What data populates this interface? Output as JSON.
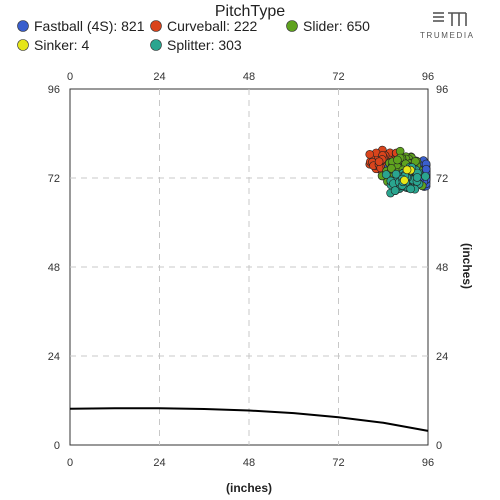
{
  "chart_data": {
    "type": "scatter",
    "title": "",
    "legend_title": "PitchType",
    "legend_placement": "top",
    "xlabel": "(inches)",
    "ylabel": "(inches)",
    "xlim": [
      0,
      96
    ],
    "ylim": [
      0,
      96
    ],
    "x_ticks": [
      "0",
      "24",
      "48",
      "72",
      "96"
    ],
    "y_ticks": [
      "0",
      "24",
      "48",
      "72",
      "96"
    ],
    "grid": true,
    "series": [
      {
        "name": "Fastball (4S)",
        "count": "821",
        "color": "#3a5fcd",
        "center": [
          93,
          73
        ],
        "spread": [
          2.2,
          1.6
        ]
      },
      {
        "name": "Curveball",
        "count": "222",
        "color": "#d9441c",
        "center": [
          84.5,
          76.5
        ],
        "spread": [
          2.0,
          1.5
        ]
      },
      {
        "name": "Slider",
        "count": "650",
        "color": "#5fa21f",
        "center": [
          89.5,
          74
        ],
        "spread": [
          2.2,
          1.6
        ]
      },
      {
        "name": "Sinker",
        "count": "4",
        "color": "#e6e619",
        "center": [
          91,
          73
        ],
        "spread": [
          1.0,
          0.8
        ]
      },
      {
        "name": "Splitter",
        "count": "303",
        "color": "#2aa58f",
        "center": [
          90.5,
          71.5
        ],
        "spread": [
          2.0,
          1.4
        ]
      }
    ],
    "reference_curve": {
      "x": [
        0,
        12,
        24,
        36,
        48,
        60,
        72,
        84,
        96
      ],
      "y": [
        9.8,
        9.9,
        9.9,
        9.7,
        9.3,
        8.6,
        7.5,
        6.0,
        3.8
      ]
    }
  },
  "logo": {
    "text": "TRUMEDIA"
  }
}
